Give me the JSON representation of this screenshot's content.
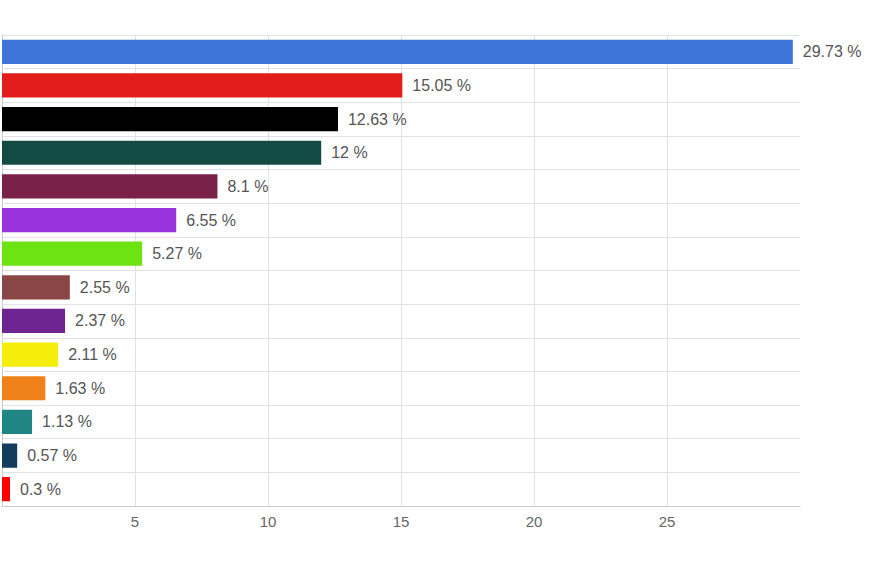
{
  "chart_data": {
    "type": "bar",
    "orientation": "horizontal",
    "categories": [
      null,
      null,
      null,
      null,
      null,
      null,
      null,
      null,
      null,
      null,
      null,
      null,
      null,
      null
    ],
    "values": [
      29.73,
      15.05,
      12.63,
      12,
      8.1,
      6.55,
      5.27,
      2.55,
      2.37,
      2.11,
      1.63,
      1.13,
      0.57,
      0.3
    ],
    "value_labels": [
      "29.73 %",
      "15.05 %",
      "12.63 %",
      "12 %",
      "8.1 %",
      "6.55 %",
      "5.27 %",
      "2.55 %",
      "2.37 %",
      "2.11 %",
      "1.63 %",
      "1.13 %",
      "0.57 %",
      "0.3 %"
    ],
    "colors": [
      "#3f74d9",
      "#e31c1c",
      "#000000",
      "#134a44",
      "#7a2149",
      "#9933dd",
      "#6ee312",
      "#8a4545",
      "#6e2591",
      "#f5ed0a",
      "#f0801a",
      "#1f8585",
      "#123d5c",
      "#ff0000"
    ],
    "xlim": [
      0,
      30
    ],
    "xticks": [
      5,
      10,
      15,
      20,
      25
    ],
    "data_labels": true,
    "tick_labels": "x",
    "grid": true
  }
}
